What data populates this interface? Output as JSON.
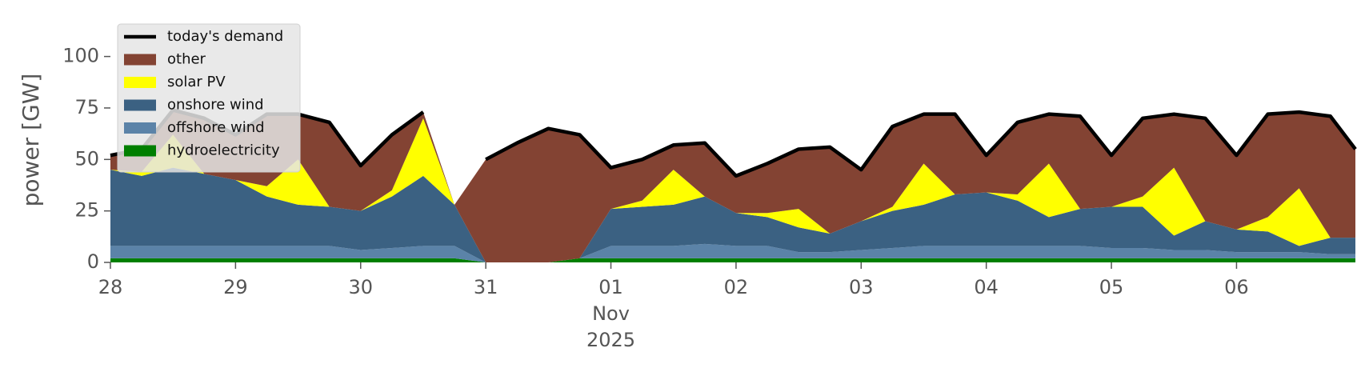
{
  "chart_data": {
    "type": "stacked-area",
    "ylabel": "power [GW]",
    "x": [
      0,
      0.25,
      0.5,
      0.75,
      1,
      1.25,
      1.5,
      1.75,
      2,
      2.25,
      2.5,
      2.75,
      3,
      3.25,
      3.5,
      3.75,
      4,
      4.25,
      4.5,
      4.75,
      5,
      5.25,
      5.5,
      5.75,
      6,
      6.25,
      6.5,
      6.75,
      7,
      7.25,
      7.5,
      7.75,
      8,
      8.25,
      8.5,
      8.75,
      9,
      9.25,
      9.5,
      9.75,
      9.95
    ],
    "series": [
      {
        "name": "today's demand",
        "type": "line",
        "color": "#000000",
        "values": [
          52,
          55,
          74,
          70,
          62,
          72,
          72,
          68,
          47,
          62,
          73,
          null,
          50,
          58,
          65,
          62,
          46,
          50,
          57,
          58,
          42,
          48,
          55,
          56,
          45,
          66,
          72,
          72,
          52,
          68,
          72,
          71,
          52,
          70,
          72,
          70,
          52,
          72,
          73,
          71,
          55
        ]
      },
      {
        "name": "other",
        "type": "area",
        "color": "#834333",
        "values": [
          7,
          11,
          12,
          27,
          22,
          35,
          22,
          41,
          22,
          27,
          3,
          0,
          50,
          58,
          65,
          60,
          20,
          20,
          12,
          26,
          18,
          24,
          29,
          42,
          25,
          39,
          24,
          39,
          18,
          35,
          24,
          45,
          25,
          38,
          26,
          50,
          36,
          50,
          37,
          59,
          43
        ]
      },
      {
        "name": "solar PV",
        "type": "area",
        "color": "#ffff00",
        "values": [
          0,
          2,
          16,
          0,
          0,
          5,
          22,
          0,
          0,
          3,
          28,
          0,
          0,
          0,
          0,
          0,
          0,
          3,
          17,
          0,
          0,
          2,
          9,
          0,
          0,
          2,
          20,
          0,
          0,
          3,
          26,
          0,
          0,
          5,
          33,
          0,
          0,
          7,
          28,
          0,
          0
        ]
      },
      {
        "name": "onshore wind",
        "type": "area",
        "color": "#3b6182",
        "values": [
          37,
          34,
          38,
          35,
          32,
          24,
          20,
          19,
          19,
          25,
          34,
          20,
          0,
          0,
          0,
          0,
          18,
          19,
          20,
          23,
          16,
          14,
          12,
          9,
          14,
          18,
          20,
          25,
          26,
          22,
          14,
          18,
          20,
          20,
          7,
          14,
          11,
          10,
          3,
          8,
          8
        ]
      },
      {
        "name": "offshore wind",
        "type": "area",
        "color": "#5b83a8",
        "values": [
          6,
          6,
          6,
          6,
          6,
          6,
          6,
          6,
          4,
          5,
          6,
          6,
          0,
          0,
          0,
          0,
          6,
          6,
          6,
          7,
          6,
          6,
          3,
          3,
          4,
          5,
          6,
          6,
          6,
          6,
          6,
          6,
          5,
          5,
          4,
          4,
          3,
          3,
          3,
          2,
          2
        ]
      },
      {
        "name": "hydroelectricity",
        "type": "area",
        "color": "#007f00",
        "values": [
          2,
          2,
          2,
          2,
          2,
          2,
          2,
          2,
          2,
          2,
          2,
          2,
          0,
          0,
          0,
          2,
          2,
          2,
          2,
          2,
          2,
          2,
          2,
          2,
          2,
          2,
          2,
          2,
          2,
          2,
          2,
          2,
          2,
          2,
          2,
          2,
          2,
          2,
          2,
          2,
          2
        ]
      }
    ],
    "xlim": [
      0,
      9.95
    ],
    "xticks": [
      {
        "value": 0,
        "label": "28"
      },
      {
        "value": 1,
        "label": "29"
      },
      {
        "value": 2,
        "label": "30"
      },
      {
        "value": 3,
        "label": "31"
      },
      {
        "value": 4,
        "label": [
          "01",
          "Nov",
          "2025"
        ]
      },
      {
        "value": 5,
        "label": "02"
      },
      {
        "value": 6,
        "label": "03"
      },
      {
        "value": 7,
        "label": "04"
      },
      {
        "value": 8,
        "label": "05"
      },
      {
        "value": 9,
        "label": "06"
      }
    ],
    "ylim": [
      0,
      115
    ],
    "yticks": [
      0,
      25,
      50,
      75,
      100
    ],
    "legend": "upper left"
  }
}
